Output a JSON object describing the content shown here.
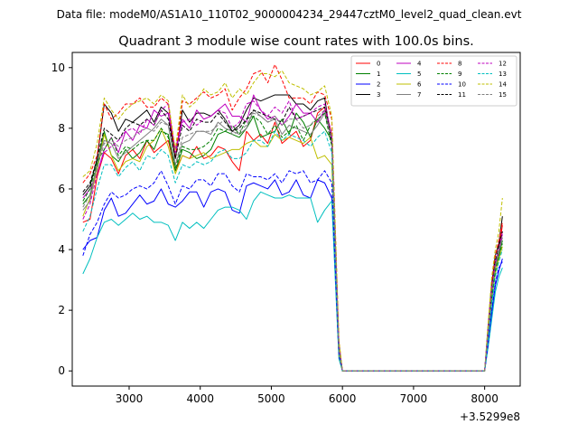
{
  "suptitle": "Data file: modeM0/AS1A10_110T02_9000004234_29447cztM0_level2_quad_clean.evt",
  "chart_data": {
    "type": "line",
    "title": "Quadrant 3 module wise count rates with 100.0s bins.",
    "xlabel": "",
    "ylabel": "",
    "x_offset_label": "+3.5299e8",
    "xlim": [
      2200,
      8500
    ],
    "ylim": [
      -0.5,
      10.5
    ],
    "x_ticks": [
      3000,
      4000,
      5000,
      6000,
      7000,
      8000
    ],
    "y_ticks": [
      0,
      2,
      4,
      6,
      8,
      10
    ],
    "legend_position": "top-right",
    "x": [
      2350,
      2450,
      2550,
      2650,
      2750,
      2850,
      2950,
      3050,
      3150,
      3250,
      3350,
      3450,
      3550,
      3650,
      3750,
      3850,
      3950,
      4050,
      4150,
      4250,
      4350,
      4450,
      4550,
      4650,
      4750,
      4850,
      4950,
      5050,
      5150,
      5250,
      5350,
      5450,
      5550,
      5650,
      5750,
      5850,
      5950,
      6000,
      6500,
      7000,
      7500,
      8000,
      8050,
      8100,
      8150,
      8200,
      8250
    ],
    "series": [
      {
        "name": "0",
        "color": "#ff0000",
        "dash": false,
        "values": [
          4.9,
          5.0,
          6.4,
          7.2,
          7.0,
          6.5,
          7.1,
          7.3,
          7.0,
          7.6,
          7.2,
          7.4,
          7.6,
          6.6,
          7.1,
          7.0,
          7.4,
          7.0,
          7.1,
          7.4,
          7.3,
          6.9,
          6.6,
          7.9,
          7.6,
          7.8,
          7.5,
          8.2,
          7.5,
          7.7,
          7.9,
          7.4,
          7.6,
          8.5,
          8.7,
          7.8,
          0.8,
          0.0,
          0.0,
          0.0,
          0.0,
          0.0,
          1.3,
          2.7,
          3.5,
          4.0,
          4.8
        ]
      },
      {
        "name": "1",
        "color": "#008000",
        "dash": false,
        "values": [
          5.5,
          5.8,
          6.8,
          7.9,
          7.1,
          6.9,
          7.3,
          7.0,
          7.2,
          7.6,
          7.3,
          7.9,
          7.8,
          6.6,
          7.3,
          7.2,
          7.0,
          7.1,
          7.3,
          7.8,
          7.9,
          7.8,
          7.7,
          8.0,
          8.4,
          7.7,
          7.8,
          7.9,
          8.3,
          7.8,
          8.5,
          8.2,
          7.7,
          8.3,
          8.0,
          7.6,
          0.6,
          0.0,
          0.0,
          0.0,
          0.0,
          0.0,
          1.2,
          2.3,
          3.4,
          3.8,
          4.3
        ]
      },
      {
        "name": "2",
        "color": "#0000ff",
        "dash": false,
        "values": [
          4.0,
          4.3,
          4.4,
          5.3,
          5.7,
          5.1,
          5.2,
          5.5,
          5.8,
          5.5,
          5.6,
          6.0,
          5.5,
          5.4,
          5.6,
          5.9,
          5.9,
          5.4,
          5.9,
          6.0,
          5.9,
          5.3,
          5.2,
          6.1,
          6.2,
          6.1,
          6.0,
          6.3,
          5.8,
          5.9,
          6.3,
          5.8,
          5.7,
          6.3,
          6.2,
          5.7,
          0.5,
          0.0,
          0.0,
          0.0,
          0.0,
          0.0,
          0.9,
          1.9,
          2.8,
          3.3,
          3.7
        ]
      },
      {
        "name": "3",
        "color": "#000000",
        "dash": false,
        "values": [
          5.8,
          6.1,
          7.0,
          8.8,
          8.5,
          7.9,
          8.3,
          8.2,
          8.4,
          8.6,
          8.2,
          8.7,
          8.5,
          7.0,
          8.6,
          8.2,
          8.5,
          8.5,
          8.4,
          8.6,
          8.3,
          7.9,
          8.1,
          8.6,
          9.0,
          8.9,
          9.0,
          9.1,
          9.1,
          9.1,
          8.8,
          8.8,
          8.6,
          8.9,
          9.0,
          7.5,
          0.9,
          0.0,
          0.0,
          0.0,
          0.0,
          0.0,
          1.5,
          2.9,
          3.8,
          4.2,
          5.1
        ]
      },
      {
        "name": "4",
        "color": "#bf00bf",
        "dash": false,
        "values": [
          5.7,
          6.0,
          6.5,
          7.3,
          7.7,
          7.2,
          7.9,
          7.6,
          8.1,
          8.0,
          8.6,
          8.4,
          8.5,
          7.3,
          8.3,
          8.0,
          8.6,
          8.3,
          8.4,
          8.6,
          8.8,
          8.4,
          8.4,
          8.2,
          9.1,
          8.6,
          8.3,
          8.4,
          8.1,
          8.4,
          8.8,
          8.5,
          8.5,
          8.2,
          8.6,
          7.6,
          0.8,
          0.0,
          0.0,
          0.0,
          0.0,
          0.0,
          1.4,
          2.8,
          3.6,
          4.0,
          4.6
        ]
      },
      {
        "name": "5",
        "color": "#00bfbf",
        "dash": false,
        "values": [
          3.2,
          3.7,
          4.4,
          4.9,
          5.0,
          4.8,
          5.0,
          5.2,
          5.0,
          5.1,
          4.9,
          4.9,
          4.8,
          4.3,
          4.9,
          4.7,
          4.9,
          4.7,
          5.0,
          5.3,
          5.4,
          5.4,
          5.3,
          5.0,
          5.6,
          5.9,
          5.8,
          5.7,
          5.7,
          5.8,
          5.7,
          5.7,
          5.7,
          4.9,
          5.3,
          5.6,
          0.4,
          0.0,
          0.0,
          0.0,
          0.0,
          0.0,
          0.8,
          1.7,
          2.6,
          3.1,
          3.4
        ]
      },
      {
        "name": "6",
        "color": "#bfbf00",
        "dash": false,
        "values": [
          5.1,
          5.7,
          6.6,
          7.8,
          7.1,
          6.6,
          6.9,
          7.0,
          6.9,
          7.4,
          7.6,
          8.0,
          7.4,
          6.5,
          7.1,
          7.0,
          7.1,
          7.2,
          7.0,
          7.1,
          7.2,
          7.3,
          7.3,
          7.5,
          7.6,
          7.4,
          7.4,
          7.8,
          7.6,
          7.7,
          7.6,
          7.5,
          7.7,
          7.0,
          7.1,
          6.8,
          0.5,
          0.0,
          0.0,
          0.0,
          0.0,
          0.0,
          1.2,
          2.4,
          3.2,
          3.7,
          4.1
        ]
      },
      {
        "name": "7",
        "color": "#808080",
        "dash": false,
        "values": [
          5.3,
          5.6,
          6.9,
          7.6,
          7.5,
          7.0,
          7.2,
          7.4,
          7.6,
          7.8,
          8.0,
          8.3,
          8.1,
          6.8,
          7.5,
          7.6,
          7.9,
          7.9,
          7.8,
          8.2,
          8.0,
          7.9,
          7.8,
          8.0,
          8.6,
          8.4,
          8.2,
          8.3,
          7.8,
          8.1,
          8.0,
          7.9,
          7.8,
          8.1,
          8.5,
          7.7,
          0.7,
          0.0,
          0.0,
          0.0,
          0.0,
          0.0,
          1.3,
          2.5,
          3.4,
          3.9,
          4.4
        ]
      },
      {
        "name": "8",
        "color": "#ff0000",
        "dash": true,
        "values": [
          6.2,
          6.5,
          7.1,
          8.8,
          8.3,
          8.5,
          8.8,
          8.8,
          9.0,
          8.7,
          8.7,
          9.0,
          8.8,
          7.0,
          8.9,
          8.8,
          9.0,
          9.2,
          9.0,
          9.1,
          9.3,
          8.6,
          9.0,
          9.3,
          9.8,
          9.9,
          9.5,
          10.1,
          9.6,
          9.0,
          9.0,
          9.0,
          8.8,
          9.2,
          9.1,
          8.3,
          1.0,
          0.0,
          0.0,
          0.0,
          0.0,
          0.0,
          1.5,
          2.9,
          3.8,
          4.3,
          4.9
        ]
      },
      {
        "name": "9",
        "color": "#008000",
        "dash": true,
        "values": [
          5.6,
          6.0,
          6.9,
          7.3,
          7.7,
          7.1,
          7.4,
          7.3,
          7.5,
          7.6,
          7.6,
          8.0,
          7.7,
          6.7,
          7.4,
          7.3,
          7.3,
          7.4,
          7.6,
          8.0,
          7.9,
          8.1,
          7.8,
          8.3,
          8.4,
          8.2,
          7.8,
          8.1,
          7.7,
          7.9,
          8.1,
          7.6,
          8.1,
          8.3,
          8.5,
          7.4,
          0.6,
          0.0,
          0.0,
          0.0,
          0.0,
          0.0,
          1.2,
          2.4,
          3.3,
          3.8,
          4.2
        ]
      },
      {
        "name": "10",
        "color": "#0000ff",
        "dash": true,
        "values": [
          3.8,
          4.5,
          4.9,
          5.5,
          5.9,
          5.7,
          5.8,
          6.0,
          6.1,
          6.0,
          6.2,
          6.6,
          6.1,
          5.5,
          6.1,
          6.0,
          6.3,
          6.3,
          6.1,
          6.5,
          6.5,
          6.1,
          5.9,
          6.5,
          6.4,
          6.4,
          6.3,
          6.5,
          6.2,
          6.6,
          6.5,
          6.6,
          6.2,
          6.3,
          6.6,
          6.2,
          0.5,
          0.0,
          0.0,
          0.0,
          0.0,
          0.0,
          0.9,
          2.0,
          2.9,
          3.4,
          3.6
        ]
      },
      {
        "name": "11",
        "color": "#000000",
        "dash": true,
        "values": [
          5.9,
          6.2,
          7.0,
          8.0,
          7.8,
          7.6,
          8.0,
          8.2,
          8.1,
          8.3,
          8.1,
          8.6,
          8.3,
          7.0,
          8.1,
          7.9,
          8.3,
          8.2,
          8.2,
          8.5,
          8.2,
          7.9,
          8.0,
          8.3,
          8.6,
          8.5,
          8.4,
          8.3,
          8.2,
          8.7,
          8.3,
          8.4,
          8.5,
          8.6,
          8.7,
          7.6,
          0.8,
          0.0,
          0.0,
          0.0,
          0.0,
          0.0,
          1.4,
          2.7,
          3.6,
          4.1,
          4.6
        ]
      },
      {
        "name": "12",
        "color": "#bf00bf",
        "dash": true,
        "values": [
          5.0,
          5.5,
          6.5,
          7.2,
          7.4,
          7.6,
          7.9,
          8.0,
          7.8,
          8.3,
          8.1,
          8.6,
          8.8,
          7.2,
          8.2,
          8.3,
          8.1,
          8.3,
          8.4,
          8.6,
          8.5,
          8.0,
          8.2,
          8.8,
          8.9,
          8.6,
          8.4,
          8.7,
          8.5,
          8.9,
          8.3,
          8.4,
          8.5,
          8.7,
          8.8,
          7.8,
          0.8,
          0.0,
          0.0,
          0.0,
          0.0,
          0.0,
          1.4,
          2.7,
          3.5,
          4.0,
          4.5
        ]
      },
      {
        "name": "13",
        "color": "#00bfbf",
        "dash": true,
        "values": [
          4.6,
          5.1,
          6.0,
          6.8,
          6.8,
          6.4,
          6.7,
          6.9,
          6.6,
          7.1,
          7.0,
          7.3,
          7.1,
          6.2,
          6.8,
          6.7,
          6.9,
          6.8,
          6.9,
          7.2,
          7.3,
          7.0,
          7.0,
          7.2,
          7.6,
          7.6,
          7.4,
          7.9,
          7.6,
          7.8,
          7.7,
          7.6,
          7.4,
          7.7,
          7.9,
          7.2,
          0.6,
          0.0,
          0.0,
          0.0,
          0.0,
          0.0,
          1.1,
          2.2,
          3.1,
          3.6,
          4.0
        ]
      },
      {
        "name": "14",
        "color": "#bfbf00",
        "dash": true,
        "values": [
          6.4,
          6.6,
          7.5,
          9.0,
          8.6,
          8.3,
          8.6,
          8.8,
          8.9,
          9.0,
          8.8,
          9.1,
          8.9,
          7.3,
          9.1,
          8.7,
          8.9,
          9.3,
          9.1,
          9.2,
          9.5,
          9.0,
          9.3,
          9.1,
          9.5,
          9.8,
          9.8,
          9.7,
          9.9,
          9.5,
          9.4,
          9.3,
          9.1,
          9.2,
          9.4,
          8.4,
          1.0,
          0.0,
          0.0,
          0.0,
          0.0,
          0.0,
          1.6,
          3.1,
          4.0,
          4.6,
          5.7
        ]
      },
      {
        "name": "15",
        "color": "#808080",
        "dash": true,
        "values": [
          5.4,
          5.8,
          6.7,
          7.5,
          7.6,
          7.4,
          7.6,
          7.7,
          7.9,
          8.0,
          7.9,
          8.2,
          8.1,
          6.8,
          7.7,
          7.8,
          7.9,
          7.9,
          7.9,
          8.1,
          8.3,
          7.8,
          7.9,
          8.1,
          8.5,
          8.4,
          8.2,
          8.4,
          8.1,
          8.3,
          8.3,
          8.0,
          8.1,
          8.4,
          8.6,
          7.7,
          0.7,
          0.0,
          0.0,
          0.0,
          0.0,
          0.0,
          1.3,
          2.6,
          3.5,
          4.0,
          4.4
        ]
      }
    ]
  }
}
